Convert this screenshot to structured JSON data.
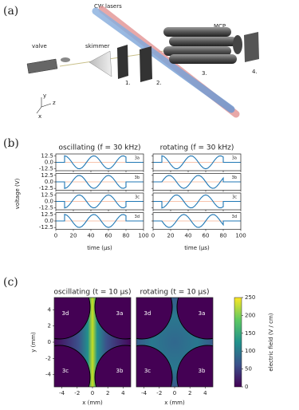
{
  "diagram": {
    "label": "(a)",
    "lasers": "CW lasers",
    "detector": "MCP",
    "valve": "valve",
    "skimmer": "skimmer",
    "stages": [
      "1.",
      "2.",
      "3.",
      "4."
    ],
    "axes": [
      "y",
      "z",
      "x"
    ]
  },
  "chart_data": [
    {
      "type": "line",
      "panel_label": "(b)",
      "title": "oscillating (f = 30 kHz)",
      "xlabel": "time (µs)",
      "ylabel": "voltage (V)",
      "x": [
        0,
        10,
        10,
        12.5,
        15,
        17.5,
        20,
        22.5,
        25,
        27.5,
        30,
        32.5,
        35,
        37.5,
        40,
        42.5,
        45,
        47.5,
        50,
        52.5,
        55,
        57.5,
        60,
        62.5,
        65,
        67.5,
        70,
        72.5,
        75,
        77.5,
        80,
        80,
        100
      ],
      "xlim": [
        0,
        100
      ],
      "xticks": [
        0,
        20,
        40,
        60,
        80,
        100
      ],
      "ylim": [
        -16,
        16
      ],
      "yticks": [
        12.5,
        {
          "value": 0,
          "label": "0.0"
        },
        -12.5
      ],
      "zero_line": true,
      "series": [
        {
          "name": "3a",
          "color": "#1f77b4",
          "values": [
            0,
            0,
            12.5,
            11.1,
            7.3,
            2.0,
            -3.9,
            -8.8,
            -11.9,
            -12.3,
            -10.1,
            -5.7,
            0,
            5.7,
            10.1,
            12.3,
            11.9,
            8.8,
            3.9,
            -2.0,
            -7.3,
            -11.1,
            -12.5,
            -11.1,
            -7.3,
            -2.0,
            3.9,
            8.8,
            11.9,
            12.3,
            10.1,
            0,
            0
          ]
        },
        {
          "name": "3b",
          "color": "#1f77b4",
          "values": [
            0,
            0,
            -12.5,
            -11.1,
            -7.3,
            -2.0,
            3.9,
            8.8,
            11.9,
            12.3,
            10.1,
            5.7,
            0,
            -5.7,
            -10.1,
            -12.3,
            -11.9,
            -8.8,
            -3.9,
            2.0,
            7.3,
            11.1,
            12.5,
            11.1,
            7.3,
            2.0,
            -3.9,
            -8.8,
            -11.9,
            -12.3,
            -10.1,
            0,
            0
          ]
        },
        {
          "name": "3c",
          "color": "#1f77b4",
          "values": [
            0,
            0,
            -12.5,
            -11.1,
            -7.3,
            -2.0,
            3.9,
            8.8,
            11.9,
            12.3,
            10.1,
            5.7,
            0,
            -5.7,
            -10.1,
            -12.3,
            -11.9,
            -8.8,
            -3.9,
            2.0,
            7.3,
            11.1,
            12.5,
            11.1,
            7.3,
            2.0,
            -3.9,
            -8.8,
            -11.9,
            -12.3,
            -10.1,
            0,
            0
          ]
        },
        {
          "name": "3d",
          "color": "#1f77b4",
          "values": [
            0,
            0,
            12.5,
            11.1,
            7.3,
            2.0,
            -3.9,
            -8.8,
            -11.9,
            -12.3,
            -10.1,
            -5.7,
            0,
            5.7,
            10.1,
            12.3,
            11.9,
            8.8,
            3.9,
            -2.0,
            -7.3,
            -11.1,
            -12.5,
            -11.1,
            -7.3,
            -2.0,
            3.9,
            8.8,
            11.9,
            12.3,
            10.1,
            0,
            0
          ]
        }
      ]
    },
    {
      "type": "line",
      "title": "rotating (f = 30 kHz)",
      "xlabel": "time (µs)",
      "x": [
        0,
        10,
        10,
        12.5,
        15,
        17.5,
        20,
        22.5,
        25,
        27.5,
        30,
        32.5,
        35,
        37.5,
        40,
        42.5,
        45,
        47.5,
        50,
        52.5,
        55,
        57.5,
        60,
        62.5,
        65,
        67.5,
        70,
        72.5,
        75,
        77.5,
        80,
        80,
        100
      ],
      "xlim": [
        0,
        100
      ],
      "xticks": [
        0,
        20,
        40,
        60,
        80,
        100
      ],
      "ylim": [
        -16,
        16
      ],
      "yticks": [
        12.5,
        {
          "value": 0,
          "label": "0.0"
        },
        -12.5
      ],
      "zero_line": true,
      "series": [
        {
          "name": "3a",
          "color": "#1f77b4",
          "values": [
            0,
            0,
            12.5,
            11.1,
            7.3,
            2.0,
            -3.9,
            -8.8,
            -11.9,
            -12.3,
            -10.1,
            -5.7,
            0,
            5.7,
            10.1,
            12.3,
            11.9,
            8.8,
            3.9,
            -2.0,
            -7.3,
            -11.1,
            -12.5,
            -11.1,
            -7.3,
            -2.0,
            3.9,
            8.8,
            11.9,
            12.3,
            10.1,
            0,
            0
          ]
        },
        {
          "name": "3b",
          "color": "#1f77b4",
          "values": [
            0,
            0,
            0,
            5.7,
            10.1,
            12.3,
            11.9,
            8.8,
            3.9,
            -2.0,
            -7.3,
            -11.1,
            -12.5,
            -11.1,
            -7.3,
            -2.0,
            3.9,
            8.8,
            11.9,
            12.3,
            10.1,
            5.7,
            0,
            -5.7,
            -10.1,
            -12.3,
            -11.9,
            -8.8,
            -3.9,
            2.0,
            7.3,
            0,
            0
          ]
        },
        {
          "name": "3c",
          "color": "#1f77b4",
          "values": [
            0,
            0,
            -12.5,
            -11.1,
            -7.3,
            -2.0,
            3.9,
            8.8,
            11.9,
            12.3,
            10.1,
            5.7,
            0,
            -5.7,
            -10.1,
            -12.3,
            -11.9,
            -8.8,
            -3.9,
            2.0,
            7.3,
            11.1,
            12.5,
            11.1,
            7.3,
            2.0,
            -3.9,
            -8.8,
            -11.9,
            -12.3,
            -10.1,
            0,
            0
          ]
        },
        {
          "name": "3d",
          "color": "#1f77b4",
          "values": [
            0,
            0,
            0,
            -5.7,
            -10.1,
            -12.3,
            -11.9,
            -8.8,
            -3.9,
            2.0,
            7.3,
            11.1,
            12.5,
            11.1,
            7.3,
            2.0,
            -3.9,
            -8.8,
            -11.9,
            -12.3,
            -10.1,
            -5.7,
            0,
            5.7,
            10.1,
            12.3,
            11.9,
            8.8,
            3.9,
            -2.0,
            -7.3,
            0,
            0
          ]
        }
      ]
    },
    {
      "type": "heatmap",
      "panel_label": "(c)",
      "title": "oscillating (t = 10 µs)",
      "xlabel": "x (mm)",
      "ylabel": "y (mm)",
      "xlim": [
        -5,
        5
      ],
      "xticks": [
        -4,
        -2,
        0,
        2,
        4
      ],
      "ylim": [
        -5.5,
        5.5
      ],
      "yticks": [
        -4,
        -2,
        0,
        2,
        4
      ],
      "electrodes": [
        "3d",
        "3a",
        "3c",
        "3b"
      ]
    },
    {
      "type": "heatmap",
      "title": "rotating (t = 10 µs)",
      "xlabel": "x (mm)",
      "xlim": [
        -5,
        5
      ],
      "xticks": [
        -4,
        -2,
        0,
        2,
        4
      ],
      "ylim": [
        -5.5,
        5.5
      ],
      "electrodes": [
        "3d",
        "3a",
        "3c",
        "3b"
      ],
      "colorbar_label": "electric field (V / cm)",
      "clim": [
        0,
        250
      ],
      "cticks": [
        0,
        50,
        100,
        150,
        200,
        250
      ]
    }
  ]
}
